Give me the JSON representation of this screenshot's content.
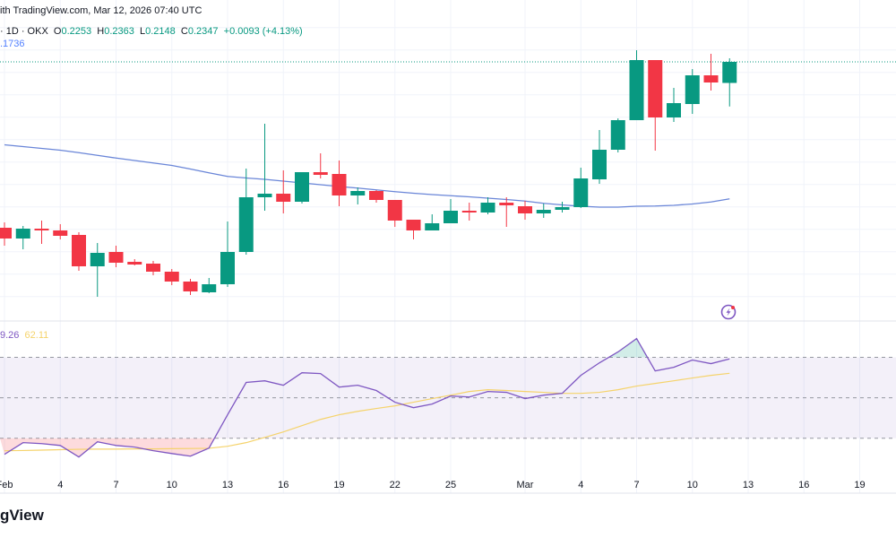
{
  "header": {
    "published": "ith TradingView.com, Mar 12, 2026 07:40 UTC",
    "symbol_suffix": "· 1D · OKX",
    "ohlc": {
      "o_label": "O",
      "o": "0.2253",
      "h_label": "H",
      "h": "0.2363",
      "l_label": "L",
      "l": "0.2148",
      "c_label": "C",
      "c": "0.2347",
      "change": "+0.0093 (+4.13%)"
    },
    "ma_value": ".1736"
  },
  "rsi_legend": {
    "rsi_value": "9.26",
    "rsi_ma_value": "62.11"
  },
  "logo_text": "gView",
  "icons": {
    "alert": "lightning-circle-icon"
  },
  "colors": {
    "up": "#089981",
    "down": "#f23645",
    "ma": "#6a86d8",
    "rsi": "#7e57c2",
    "rsi_ma": "#f5d36b",
    "band": "#7e57c2"
  },
  "chart_data": [
    {
      "type": "candlestick",
      "ylim": [
        0.1191,
        0.2623
      ],
      "grid": true,
      "last_price_line": 0.2347,
      "candles_fields": [
        "date",
        "open",
        "high",
        "low",
        "close"
      ],
      "candles": [
        [
          "2026-02-01",
          0.1607,
          0.1631,
          0.1527,
          0.1559
        ],
        [
          "2026-02-02",
          0.1559,
          0.1615,
          0.1511,
          0.1603
        ],
        [
          "2026-02-03",
          0.1603,
          0.1639,
          0.1535,
          0.1595
        ],
        [
          "2026-02-04",
          0.1595,
          0.1623,
          0.1555,
          0.1571
        ],
        [
          "2026-02-05",
          0.1575,
          0.1587,
          0.1415,
          0.1435
        ],
        [
          "2026-02-06",
          0.1435,
          0.1539,
          0.1299,
          0.1495
        ],
        [
          "2026-02-07",
          0.1499,
          0.1527,
          0.1431,
          0.1451
        ],
        [
          "2026-02-08",
          0.1455,
          0.1467,
          0.1439,
          0.1443
        ],
        [
          "2026-02-09",
          0.1447,
          0.1459,
          0.1395,
          0.1411
        ],
        [
          "2026-02-10",
          0.1411,
          0.1423,
          0.1351,
          0.1367
        ],
        [
          "2026-02-11",
          0.1367,
          0.1379,
          0.1307,
          0.1323
        ],
        [
          "2026-02-12",
          0.1319,
          0.1383,
          0.1315,
          0.1355
        ],
        [
          "2026-02-13",
          0.1355,
          0.1635,
          0.1343,
          0.1499
        ],
        [
          "2026-02-14",
          0.1499,
          0.1871,
          0.1487,
          0.1743
        ],
        [
          "2026-02-15",
          0.1743,
          0.2071,
          0.1683,
          0.1759
        ],
        [
          "2026-02-16",
          0.1759,
          0.1863,
          0.1671,
          0.1723
        ],
        [
          "2026-02-17",
          0.1723,
          0.1855,
          0.1715,
          0.1855
        ],
        [
          "2026-02-18",
          0.1855,
          0.1939,
          0.1827,
          0.1843
        ],
        [
          "2026-02-19",
          0.1847,
          0.1907,
          0.1703,
          0.1751
        ],
        [
          "2026-02-20",
          0.1751,
          0.1787,
          0.1711,
          0.1771
        ],
        [
          "2026-02-21",
          0.1771,
          0.1775,
          0.1719,
          0.1731
        ],
        [
          "2026-02-22",
          0.1731,
          0.1731,
          0.1611,
          0.1639
        ],
        [
          "2026-02-23",
          0.1643,
          0.1643,
          0.1555,
          0.1595
        ],
        [
          "2026-02-24",
          0.1595,
          0.1667,
          0.1595,
          0.1627
        ],
        [
          "2026-02-25",
          0.1627,
          0.1735,
          0.1627,
          0.1683
        ],
        [
          "2026-02-26",
          0.1683,
          0.1719,
          0.1639,
          0.1675
        ],
        [
          "2026-02-27",
          0.1675,
          0.1743,
          0.1667,
          0.1719
        ],
        [
          "2026-02-28",
          0.1719,
          0.1743,
          0.1611,
          0.1707
        ],
        [
          "2026-03-01",
          0.1703,
          0.1727,
          0.1643,
          0.1671
        ],
        [
          "2026-03-02",
          0.1671,
          0.1715,
          0.1651,
          0.1687
        ],
        [
          "2026-03-03",
          0.1687,
          0.1723,
          0.1675,
          0.1699
        ],
        [
          "2026-03-04",
          0.1699,
          0.1875,
          0.1695,
          0.1827
        ],
        [
          "2026-03-05",
          0.1823,
          0.2043,
          0.1803,
          0.1955
        ],
        [
          "2026-03-06",
          0.1955,
          0.2095,
          0.1943,
          0.2087
        ],
        [
          "2026-03-07",
          0.2087,
          0.2399,
          0.2087,
          0.2355
        ],
        [
          "2026-03-08",
          0.2355,
          0.2355,
          0.1951,
          0.2099
        ],
        [
          "2026-03-09",
          0.2099,
          0.2231,
          0.2079,
          0.2163
        ],
        [
          "2026-03-10",
          0.2159,
          0.2315,
          0.2115,
          0.2287
        ],
        [
          "2026-03-11",
          0.2287,
          0.2383,
          0.2219,
          0.2255
        ],
        [
          "2026-03-12",
          0.2253,
          0.2363,
          0.2148,
          0.2347
        ]
      ],
      "ma": [
        0.1977,
        0.1969,
        0.1961,
        0.1953,
        0.1942,
        0.193,
        0.1918,
        0.1907,
        0.1896,
        0.1885,
        0.1869,
        0.1852,
        0.1836,
        0.1829,
        0.1823,
        0.1815,
        0.1807,
        0.1799,
        0.1791,
        0.1784,
        0.1776,
        0.1768,
        0.1761,
        0.1755,
        0.175,
        0.1745,
        0.1739,
        0.1733,
        0.1726,
        0.1716,
        0.1709,
        0.1703,
        0.1699,
        0.1699,
        0.1703,
        0.1704,
        0.1707,
        0.1713,
        0.1722,
        0.1736
      ]
    },
    {
      "type": "line",
      "ylim": [
        13,
        88
      ],
      "bands": [
        30,
        50,
        70
      ],
      "rsi": [
        22.0,
        27.8,
        27.3,
        26.4,
        20.7,
        28.2,
        26.4,
        25.6,
        23.8,
        22.4,
        21.1,
        25.1,
        41.6,
        57.6,
        58.4,
        56.2,
        62.4,
        62.0,
        55.3,
        56.2,
        53.6,
        47.8,
        45.1,
        46.9,
        50.9,
        50.4,
        53.1,
        52.7,
        49.6,
        51.3,
        52.2,
        61.1,
        67.3,
        72.7,
        79.3,
        63.3,
        65.1,
        68.7,
        66.9,
        69.26
      ],
      "rsi_ma": [
        23.8,
        23.9,
        24.1,
        24.3,
        24.5,
        24.6,
        24.6,
        24.7,
        24.7,
        24.8,
        24.9,
        25.0,
        26.0,
        27.8,
        30.4,
        33.1,
        36.2,
        39.3,
        41.6,
        43.3,
        44.7,
        46.0,
        47.8,
        49.6,
        51.3,
        53.1,
        54.0,
        53.6,
        53.1,
        52.7,
        52.2,
        52.2,
        52.7,
        54.0,
        55.8,
        57.1,
        58.4,
        59.8,
        61.1,
        62.11
      ]
    }
  ],
  "x_ticks": [
    {
      "date": "2026-02-01",
      "label": "Feb"
    },
    {
      "date": "2026-02-04",
      "label": "4"
    },
    {
      "date": "2026-02-07",
      "label": "7"
    },
    {
      "date": "2026-02-10",
      "label": "10"
    },
    {
      "date": "2026-02-13",
      "label": "13"
    },
    {
      "date": "2026-02-16",
      "label": "16"
    },
    {
      "date": "2026-02-19",
      "label": "19"
    },
    {
      "date": "2026-02-22",
      "label": "22"
    },
    {
      "date": "2026-02-25",
      "label": "25"
    },
    {
      "date": "2026-03-01",
      "label": "Mar"
    },
    {
      "date": "2026-03-04",
      "label": "4"
    },
    {
      "date": "2026-03-07",
      "label": "7"
    },
    {
      "date": "2026-03-10",
      "label": "10"
    },
    {
      "date": "2026-03-13",
      "label": "13"
    },
    {
      "date": "2026-03-16",
      "label": "16"
    },
    {
      "date": "2026-03-19",
      "label": "19"
    }
  ]
}
